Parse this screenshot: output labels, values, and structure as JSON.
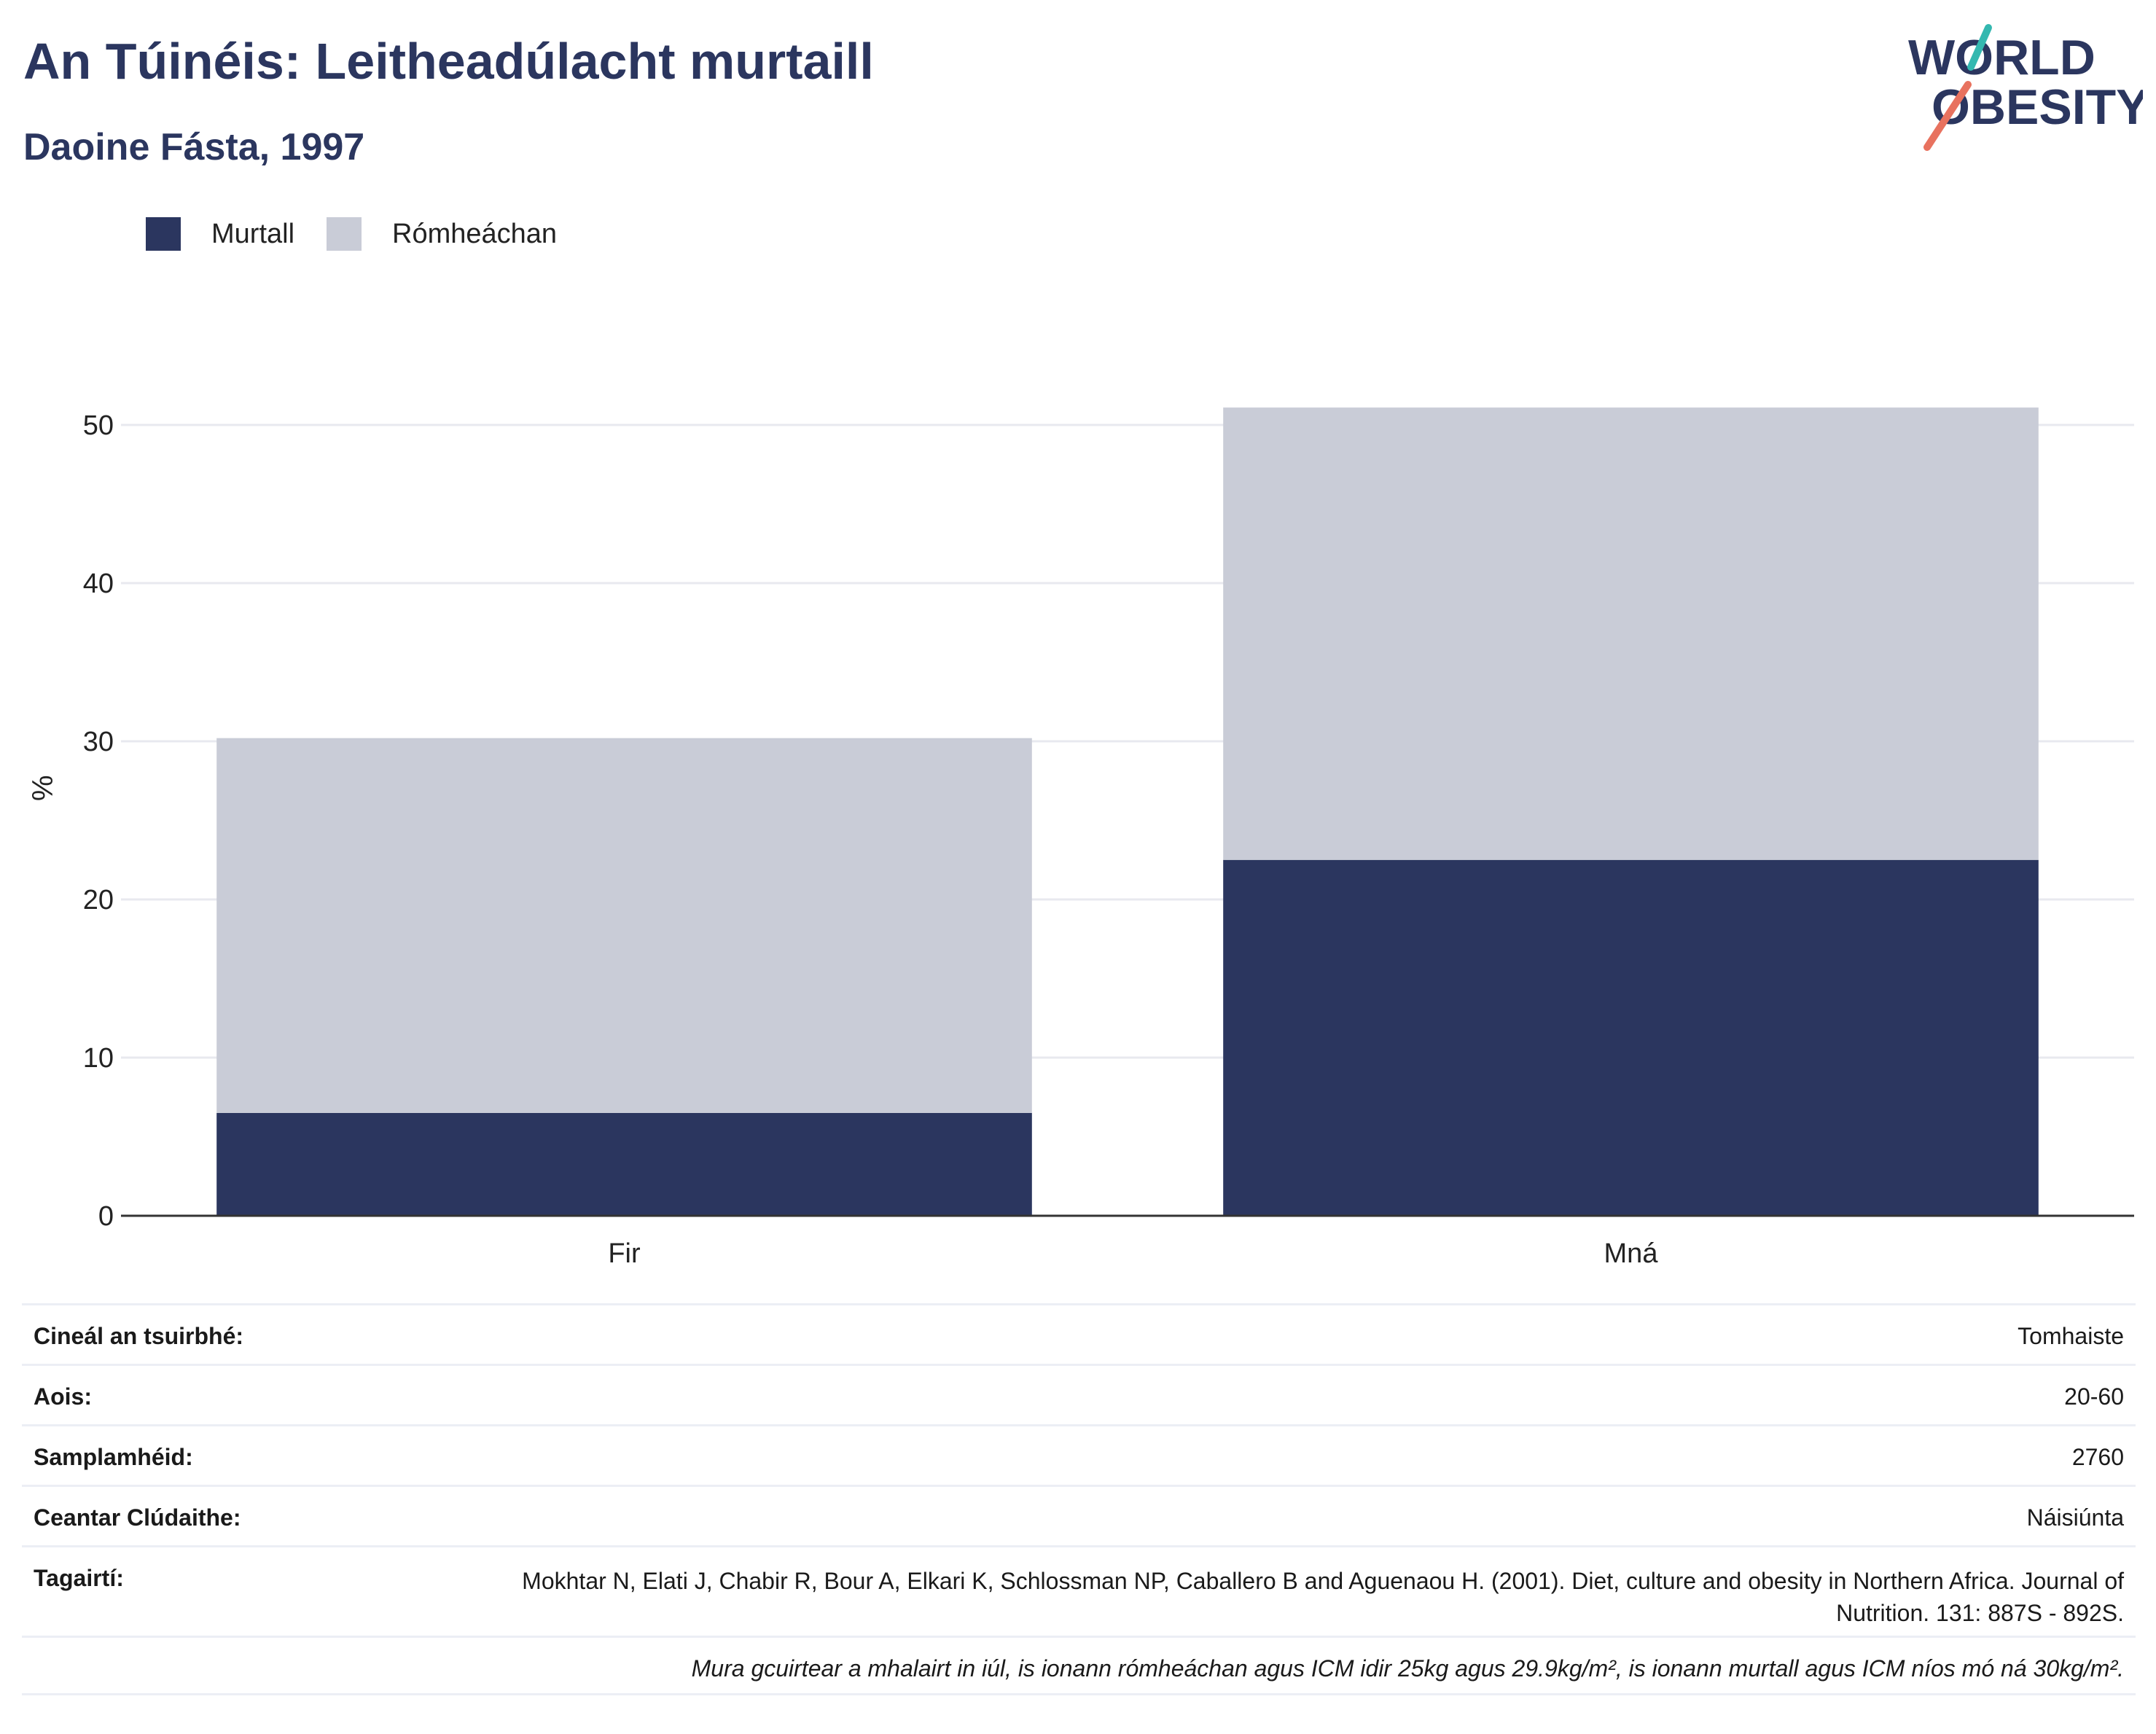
{
  "header": {
    "title": "An Túinéis: Leitheadúlacht murtaill",
    "subtitle": "Daoine Fásta, 1997"
  },
  "logo": {
    "line1": "WORLD",
    "line2": "OBESITY"
  },
  "colors": {
    "obese": "#2b365f",
    "overweight": "#c9ccd7",
    "title": "#2b365f",
    "logo_teal": "#34b8b0",
    "logo_coral": "#e8725f"
  },
  "legend": [
    {
      "label": "Murtall",
      "color": "#2b365f"
    },
    {
      "label": "Rómheáchan",
      "color": "#c9ccd7"
    }
  ],
  "chart_data": {
    "type": "bar",
    "stacked": true,
    "categories": [
      "Fir",
      "Mná"
    ],
    "series": [
      {
        "name": "Murtall",
        "values": [
          6.5,
          22.5
        ]
      },
      {
        "name": "Rómheáchan",
        "values": [
          23.7,
          28.6
        ]
      }
    ],
    "ylabel": "%",
    "ylim": [
      0,
      55
    ],
    "yticks": [
      0,
      10,
      20,
      30,
      40,
      50
    ],
    "grid": true
  },
  "meta": {
    "survey_type_label": "Cineál an tsuirbhé:",
    "survey_type_value": "Tomhaiste",
    "age_label": "Aois:",
    "age_value": "20-60",
    "sample_label": "Samplamhéid:",
    "sample_value": "2760",
    "area_label": "Ceantar Clúdaithe:",
    "area_value": "Náisiúnta",
    "refs_label": "Tagairtí:",
    "refs_value": "Mokhtar N, Elati J, Chabir R, Bour A, Elkari K, Schlossman NP, Caballero B and Aguenaou H. (2001). Diet, culture and obesity in Northern Africa. Journal of Nutrition. 131: 887S - 892S.",
    "note": "Mura gcuirtear a mhalairt in iúl, is ionann rómheáchan agus ICM idir 25kg agus 29.9kg/m², is ionann murtall agus ICM níos mó ná 30kg/m²."
  }
}
